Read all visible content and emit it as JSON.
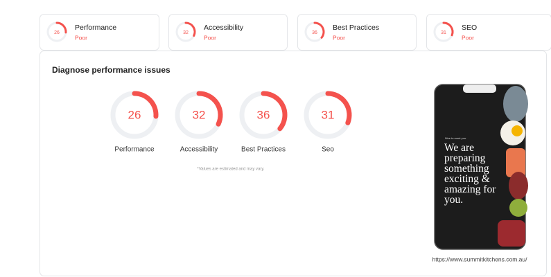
{
  "summary_cards": [
    {
      "score": 26,
      "label": "Performance",
      "rating": "Poor"
    },
    {
      "score": 32,
      "label": "Accessibility",
      "rating": "Poor"
    },
    {
      "score": 36,
      "label": "Best Practices",
      "rating": "Poor"
    },
    {
      "score": 31,
      "label": "SEO",
      "rating": "Poor"
    }
  ],
  "diagnose": {
    "title": "Diagnose performance issues",
    "gauges": [
      {
        "score": 26,
        "label": "Performance"
      },
      {
        "score": 32,
        "label": "Accessibility"
      },
      {
        "score": 36,
        "label": "Best Practices"
      },
      {
        "score": 31,
        "label": "Seo"
      }
    ],
    "note": "*Values are estimated and may vary."
  },
  "preview": {
    "small_text": "Nice to meet you.",
    "headline": "We are preparing something exciting & amazing for you.",
    "url": "https://www.summitkitchens.com.au/"
  }
}
